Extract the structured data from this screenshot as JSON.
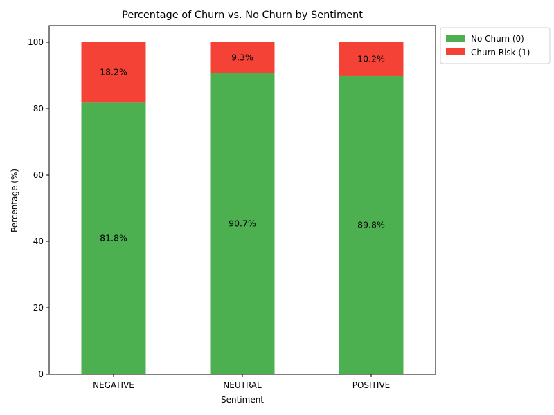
{
  "chart_data": {
    "type": "bar",
    "stacked": true,
    "title": "Percentage of Churn vs. No Churn by Sentiment",
    "xlabel": "Sentiment",
    "ylabel": "Percentage (%)",
    "categories": [
      "NEGATIVE",
      "NEUTRAL",
      "POSITIVE"
    ],
    "ylim": [
      0,
      105
    ],
    "yticks": [
      0,
      20,
      40,
      60,
      80,
      100
    ],
    "grid": false,
    "legend_position": "outside-top-right",
    "series": [
      {
        "name": "No Churn (0)",
        "color": "#4caf50",
        "values": [
          81.8,
          90.7,
          89.8
        ],
        "labels": [
          "81.8%",
          "90.7%",
          "89.8%"
        ]
      },
      {
        "name": "Churn Risk (1)",
        "color": "#f44336",
        "values": [
          18.2,
          9.3,
          10.2
        ],
        "labels": [
          "18.2%",
          "9.3%",
          "10.2%"
        ]
      }
    ]
  }
}
